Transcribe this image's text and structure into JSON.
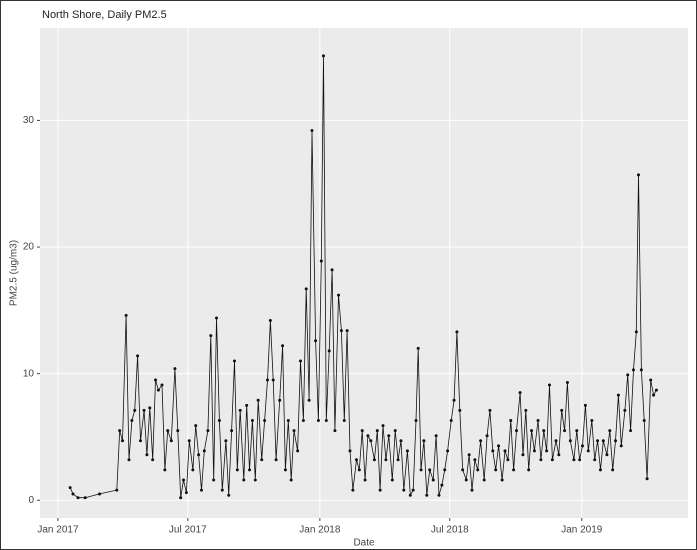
{
  "chart_data": {
    "type": "line",
    "title": "North Shore, Daily PM2.5",
    "x_label": "Date",
    "y_label": "PM2.5 (ug/m3)",
    "color": "#111111",
    "grid": true,
    "xlim": [
      -25,
      878
    ],
    "ylim": [
      -1.4,
      37.3
    ],
    "xticks": [
      {
        "value": 0,
        "label": "Jan 2017"
      },
      {
        "value": 181,
        "label": "Jul 2017"
      },
      {
        "value": 365,
        "label": "Jan 2018"
      },
      {
        "value": 546,
        "label": "Jul 2018"
      },
      {
        "value": 730,
        "label": "Jan 2019"
      }
    ],
    "yticks": [
      0,
      10,
      20,
      30
    ],
    "x": [
      17,
      21,
      28,
      38,
      58,
      82,
      86,
      90,
      95,
      99,
      103,
      107,
      111,
      115,
      120,
      124,
      128,
      132,
      136,
      140,
      145,
      149,
      153,
      158,
      163,
      167,
      171,
      175,
      179,
      183,
      188,
      192,
      196,
      200,
      204,
      209,
      213,
      217,
      221,
      225,
      229,
      234,
      238,
      242,
      246,
      250,
      254,
      259,
      263,
      267,
      271,
      275,
      279,
      284,
      288,
      292,
      296,
      300,
      304,
      309,
      313,
      317,
      321,
      325,
      329,
      334,
      338,
      342,
      346,
      350,
      354,
      359,
      363,
      367,
      370,
      374,
      378,
      382,
      386,
      391,
      395,
      399,
      403,
      407,
      411,
      416,
      420,
      424,
      428,
      432,
      436,
      441,
      445,
      449,
      453,
      457,
      461,
      466,
      470,
      474,
      478,
      482,
      487,
      491,
      495,
      499,
      502,
      506,
      510,
      514,
      518,
      523,
      527,
      531,
      535,
      539,
      543,
      548,
      552,
      556,
      560,
      564,
      569,
      573,
      577,
      581,
      585,
      589,
      594,
      598,
      602,
      606,
      610,
      614,
      619,
      623,
      627,
      631,
      635,
      639,
      644,
      648,
      652,
      656,
      660,
      664,
      669,
      673,
      677,
      681,
      685,
      689,
      694,
      698,
      702,
      706,
      710,
      714,
      719,
      723,
      727,
      731,
      735,
      739,
      744,
      748,
      752,
      756,
      760,
      765,
      769,
      773,
      777,
      781,
      785,
      790,
      794,
      798,
      802,
      806,
      809,
      813,
      817,
      821,
      826,
      830,
      834
    ],
    "values": [
      1.0,
      0.5,
      0.2,
      0.2,
      0.5,
      0.8,
      5.5,
      4.7,
      14.6,
      3.2,
      6.3,
      7.1,
      11.4,
      4.7,
      7.1,
      3.6,
      7.3,
      3.2,
      9.5,
      8.7,
      9.1,
      2.4,
      5.5,
      4.7,
      10.4,
      5.5,
      0.2,
      1.6,
      0.6,
      4.7,
      2.4,
      5.9,
      3.6,
      0.8,
      3.9,
      5.5,
      13.0,
      1.6,
      14.4,
      6.3,
      0.8,
      4.7,
      0.4,
      5.5,
      11.0,
      2.4,
      7.1,
      1.6,
      7.5,
      2.4,
      6.3,
      1.6,
      7.9,
      3.2,
      6.3,
      9.5,
      14.2,
      9.5,
      3.2,
      7.9,
      12.2,
      2.4,
      6.3,
      1.6,
      5.5,
      3.9,
      11.0,
      6.3,
      16.7,
      7.9,
      29.2,
      12.6,
      6.3,
      18.9,
      35.1,
      6.3,
      11.8,
      18.2,
      5.5,
      16.2,
      13.4,
      6.3,
      13.4,
      3.9,
      0.8,
      3.2,
      2.4,
      5.5,
      1.6,
      5.1,
      4.7,
      3.2,
      5.5,
      0.8,
      5.9,
      3.2,
      5.1,
      1.6,
      5.5,
      3.2,
      4.7,
      0.8,
      3.9,
      0.4,
      0.8,
      6.3,
      12.0,
      2.4,
      4.7,
      0.4,
      2.4,
      1.6,
      5.1,
      0.4,
      1.2,
      2.4,
      3.9,
      6.3,
      7.9,
      13.3,
      7.1,
      2.4,
      1.6,
      3.6,
      0.8,
      3.2,
      2.4,
      4.7,
      1.6,
      5.1,
      7.1,
      3.9,
      2.4,
      4.3,
      1.6,
      3.9,
      3.2,
      6.3,
      2.4,
      5.5,
      8.5,
      3.6,
      7.1,
      2.4,
      5.5,
      3.9,
      6.3,
      3.2,
      5.5,
      3.9,
      9.1,
      3.2,
      4.7,
      3.6,
      7.1,
      5.5,
      9.3,
      4.7,
      3.2,
      5.5,
      3.2,
      4.3,
      7.5,
      3.9,
      6.3,
      3.2,
      4.7,
      2.4,
      4.7,
      3.6,
      5.5,
      2.4,
      4.7,
      8.3,
      4.3,
      7.1,
      9.9,
      5.5,
      10.3,
      13.3,
      25.7,
      10.3,
      6.3,
      1.7,
      9.5,
      8.3,
      8.7
    ]
  }
}
